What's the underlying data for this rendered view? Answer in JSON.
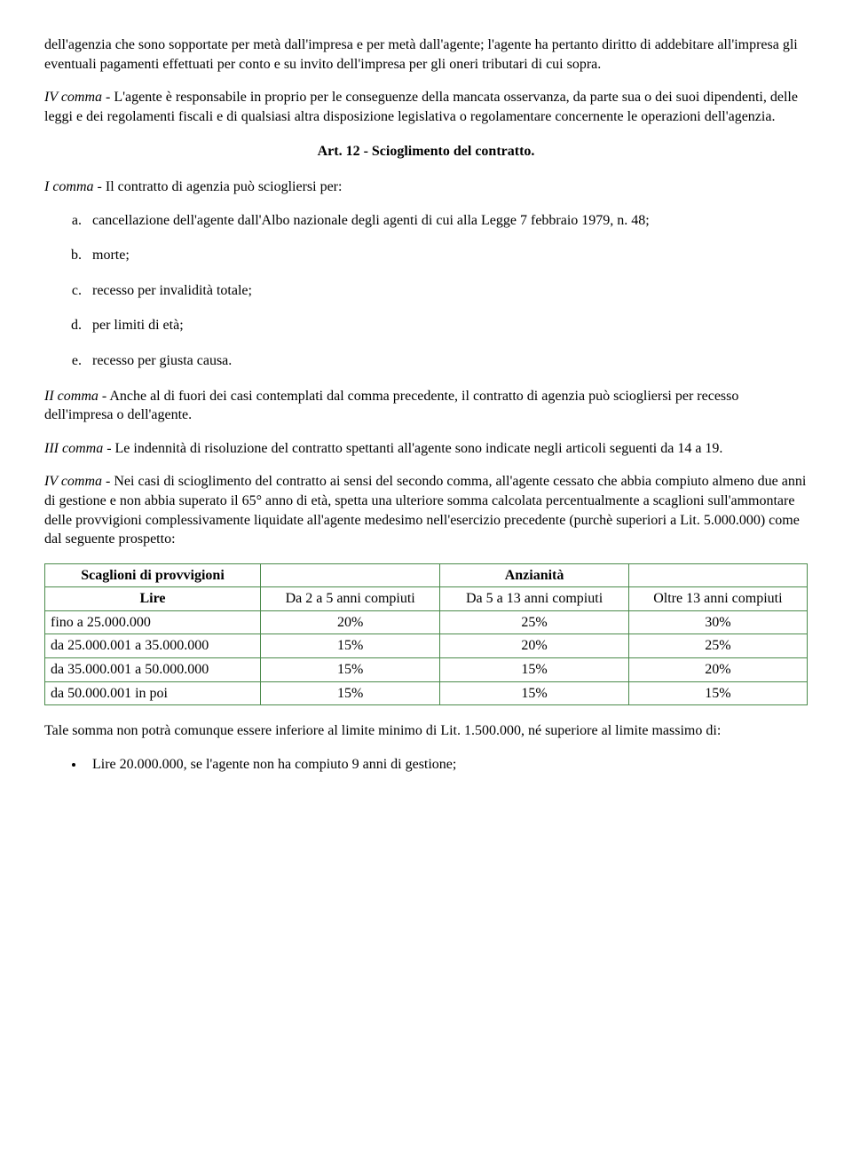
{
  "para1": "dell'agenzia che sono sopportate per metà dall'impresa e per metà dall'agente; l'agente ha pertanto diritto di addebitare all'impresa gli eventuali pagamenti effettuati per conto e su invito dell'impresa per gli oneri tributari di cui sopra.",
  "para2_lead": "IV comma",
  "para2_rest": " - L'agente è responsabile in proprio per le conseguenze della mancata osservanza, da parte sua o dei suoi dipendenti, delle leggi e dei regolamenti fiscali e di qualsiasi altra disposizione legislativa o regolamentare concernente le operazioni dell'agenzia.",
  "art12_heading": "Art. 12 - Scioglimento del contratto.",
  "para3_lead": "I comma",
  "para3_rest": " - Il contratto di agenzia può sciogliersi per:",
  "list": {
    "a": "cancellazione dell'agente dall'Albo nazionale degli agenti di cui alla Legge 7 febbraio 1979, n. 48;",
    "b": "morte;",
    "c": "recesso per invalidità totale;",
    "d": "per limiti di età;",
    "e": "recesso per giusta causa."
  },
  "para4_lead": "II comma",
  "para4_rest": " - Anche al di fuori dei casi contemplati dal comma precedente, il contratto di agenzia può sciogliersi per recesso dell'impresa o dell'agente.",
  "para5_lead": "III comma",
  "para5_rest": " - Le indennità di risoluzione del contratto spettanti all'agente sono indicate negli articoli seguenti da 14 a 19.",
  "para6_lead": "IV comma",
  "para6_rest": " - Nei casi di scioglimento del contratto ai sensi del secondo comma, all'agente cessato che abbia compiuto almeno due anni di gestione e non abbia superato il 65° anno di età, spetta una ulteriore somma calcolata percentualmente a scaglioni sull'ammontare delle provvigioni complessivamente liquidate all'agente medesimo nell'esercizio precedente (purchè superiori a Lit. 5.000.000) come dal seguente prospetto:",
  "table": {
    "type": "table",
    "border_color": "#4a8a4a",
    "header1": "Scaglioni di provvigioni",
    "header2": "Anzianità",
    "sub1": "Lire",
    "sub2": "Da 2 a 5 anni compiuti",
    "sub3": "Da 5 a 13 anni compiuti",
    "sub4": "Oltre 13 anni compiuti",
    "rows": [
      {
        "label": "fino a 25.000.000",
        "c1": "20%",
        "c2": "25%",
        "c3": "30%"
      },
      {
        "label": "da 25.000.001 a 35.000.000",
        "c1": "15%",
        "c2": "20%",
        "c3": "25%"
      },
      {
        "label": "da 35.000.001 a 50.000.000",
        "c1": "15%",
        "c2": "15%",
        "c3": "20%"
      },
      {
        "label": "da 50.000.001 in poi",
        "c1": "15%",
        "c2": "15%",
        "c3": "15%"
      }
    ]
  },
  "para7": "Tale somma non potrà comunque essere inferiore al limite minimo di Lit. 1.500.000, né superiore al limite massimo di:",
  "bullet1": "Lire 20.000.000, se l'agente non ha compiuto 9 anni di gestione;"
}
